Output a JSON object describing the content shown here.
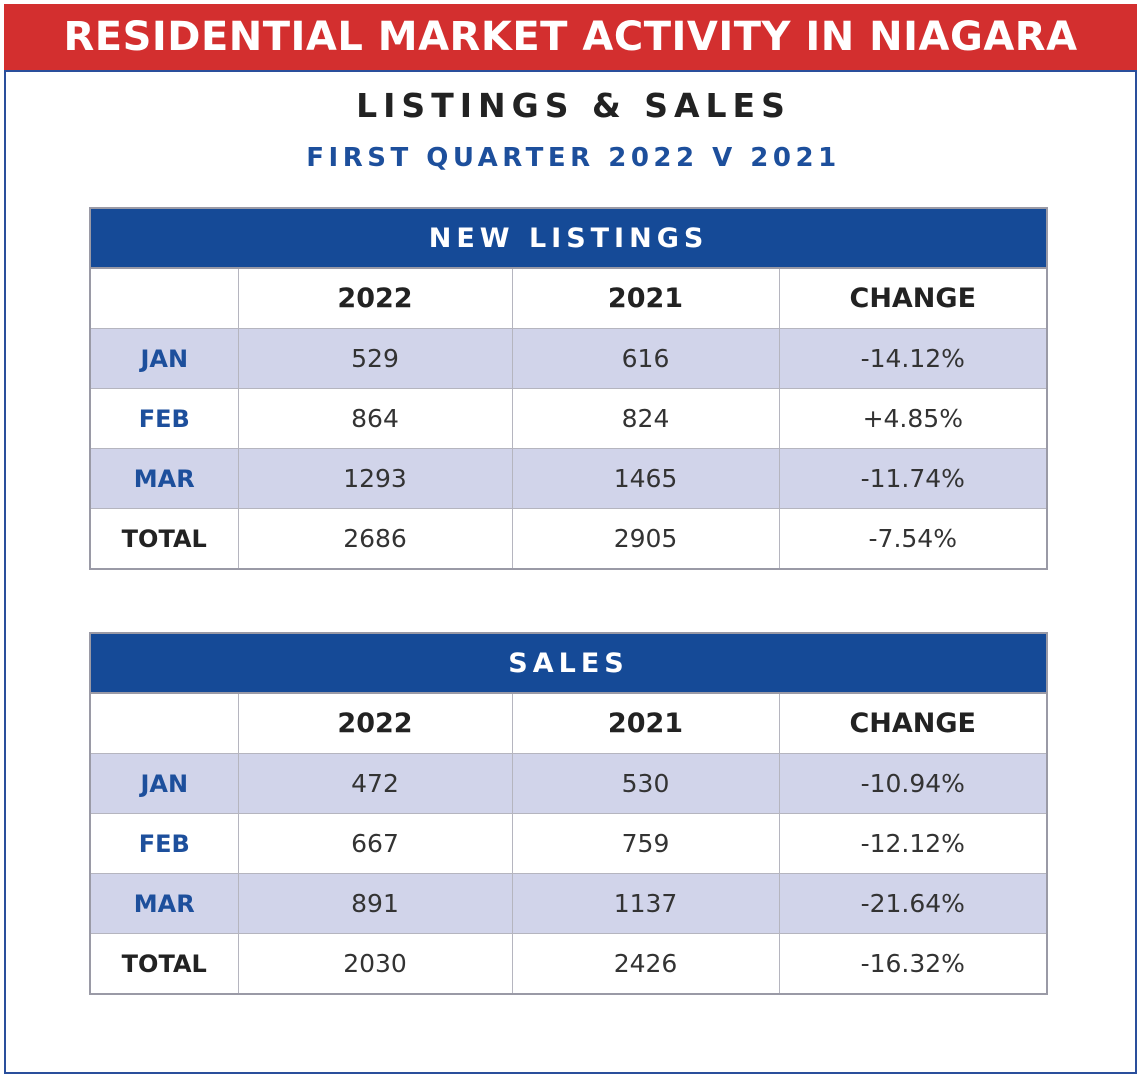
{
  "header": {
    "banner": "RESIDENTIAL MARKET ACTIVITY IN NIAGARA",
    "title": "LISTINGS & SALES",
    "subtitle": "FIRST QUARTER 2022 V 2021"
  },
  "colors": {
    "banner": "#d32f2f",
    "table_header": "#154a97",
    "row_shade": "#d1d4ea",
    "month_label": "#1d4f9c"
  },
  "chart_data": [
    {
      "type": "table",
      "title": "NEW LISTINGS",
      "columns": [
        "",
        "2022",
        "2021",
        "CHANGE"
      ],
      "rows": [
        [
          "JAN",
          "529",
          "616",
          "-14.12%"
        ],
        [
          "FEB",
          "864",
          "824",
          "+4.85%"
        ],
        [
          "MAR",
          "1293",
          "1465",
          "-11.74%"
        ],
        [
          "TOTAL",
          "2686",
          "2905",
          "-7.54%"
        ]
      ]
    },
    {
      "type": "table",
      "title": "SALES",
      "columns": [
        "",
        "2022",
        "2021",
        "CHANGE"
      ],
      "rows": [
        [
          "JAN",
          "472",
          "530",
          "-10.94%"
        ],
        [
          "FEB",
          "667",
          "759",
          "-12.12%"
        ],
        [
          "MAR",
          "891",
          "1137",
          "-21.64%"
        ],
        [
          "TOTAL",
          "2030",
          "2426",
          "-16.32%"
        ]
      ]
    }
  ]
}
